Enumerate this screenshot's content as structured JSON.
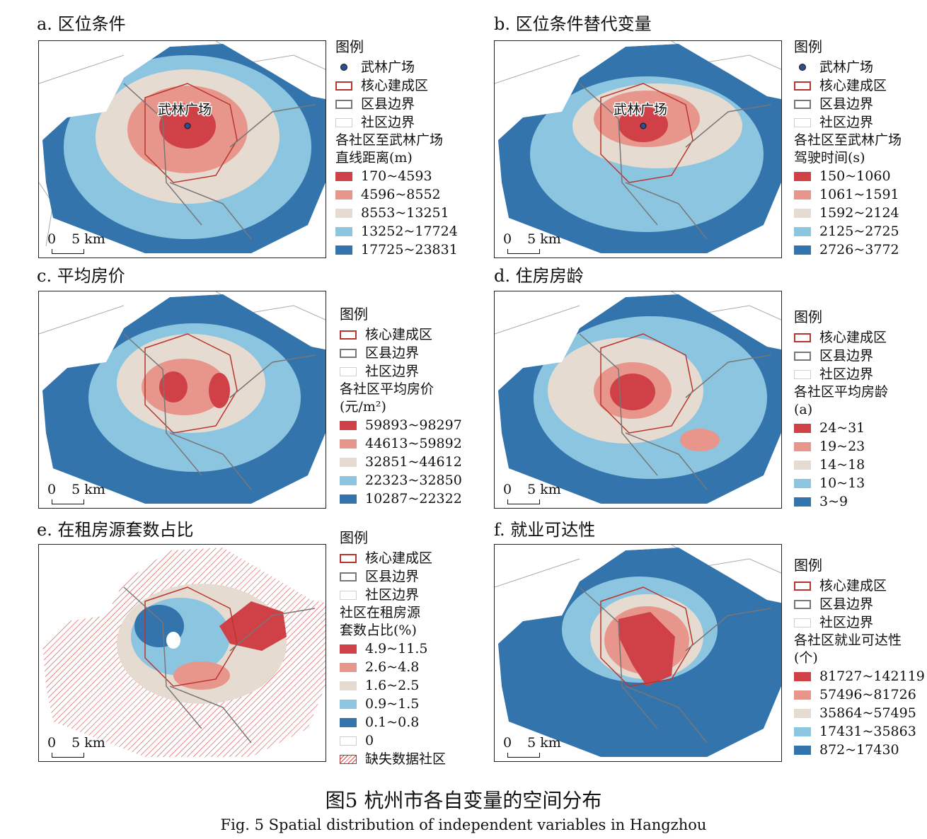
{
  "colors": {
    "red": "#cf4147",
    "pink": "#e8968b",
    "beige": "#e6dbd1",
    "lightblue": "#8cc5e0",
    "blue": "#3474ad",
    "core_boundary": "#b8352f",
    "county_boundary": "#777777"
  },
  "common_legend": {
    "heading": "图例",
    "landmark": "武林广场",
    "core": "核心建成区",
    "county": "区县边界",
    "community": "社区边界"
  },
  "map_label": "武林广场",
  "scale": {
    "zero": "0",
    "dist": "5 km"
  },
  "panels": [
    {
      "title": "a. 区位条件",
      "variable_line1": "各社区至武林广场",
      "variable_line2": "直线距离(m)",
      "classes": [
        "170~4593",
        "4596~8552",
        "8553~13251",
        "13252~17724",
        "17725~23831"
      ],
      "show_landmark": true
    },
    {
      "title": "b. 区位条件替代变量",
      "variable_line1": "各社区至武林广场",
      "variable_line2": "驾驶时间(s)",
      "classes": [
        "150~1060",
        "1061~1591",
        "1592~2124",
        "2125~2725",
        "2726~3772"
      ],
      "show_landmark": true
    },
    {
      "title": "c. 平均房价",
      "variable_line1": "各社区平均房价",
      "variable_line2": "(元/m²)",
      "classes": [
        "59893~98297",
        "44613~59892",
        "32851~44612",
        "22323~32850",
        "10287~22322"
      ],
      "show_landmark": false
    },
    {
      "title": "d. 住房房龄",
      "variable_line1": "各社区平均房龄",
      "variable_line2": "(a)",
      "classes": [
        "24~31",
        "19~23",
        "14~18",
        "10~13",
        "3~9"
      ],
      "show_landmark": false
    },
    {
      "title": "e. 在租房源套数占比",
      "variable_line1": "社区在租房源",
      "variable_line2": "套数占比(%)",
      "classes": [
        "4.9~11.5",
        "2.6~4.8",
        "1.6~2.5",
        "0.9~1.5",
        "0.1~0.8"
      ],
      "extra": [
        "0",
        "缺失数据社区"
      ],
      "show_landmark": false
    },
    {
      "title": "f. 就业可达性",
      "variable_line1": "各社区就业可达性",
      "variable_line2": "(个)",
      "classes": [
        "81727~142119",
        "57496~81726",
        "35864~57495",
        "17431~35863",
        "872~17430"
      ],
      "show_landmark": false
    }
  ],
  "caption": {
    "zh": "图5   杭州市各自变量的空间分布",
    "en": "Fig. 5   Spatial distribution of independent variables in Hangzhou"
  }
}
